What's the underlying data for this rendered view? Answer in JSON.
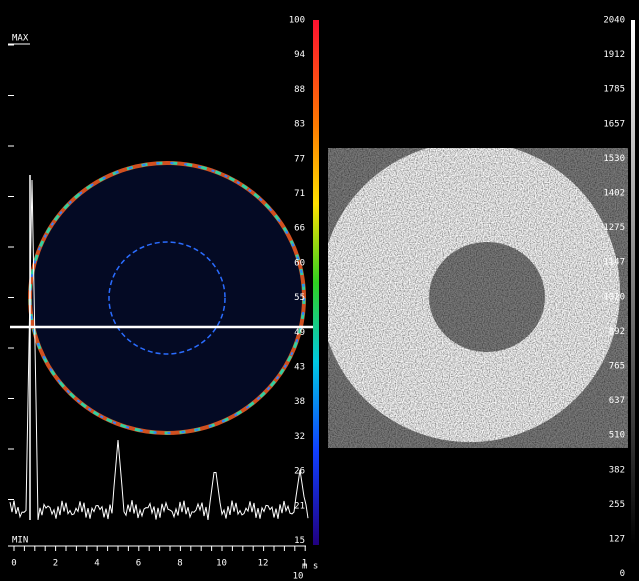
{
  "left_panel": {
    "max_label": "MAX",
    "min_label": "MIN",
    "x_axis_labels": [
      "0",
      "2",
      "4",
      "6",
      "8",
      "10",
      "12",
      "1"
    ],
    "x_axis_unit": "m s",
    "x_axis_exponent": "10"
  },
  "color_scale": {
    "labels": [
      "100",
      "94",
      "88",
      "83",
      "77",
      "71",
      "66",
      "60",
      "55",
      "49",
      "43",
      "38",
      "32",
      "26",
      "21",
      "15"
    ]
  },
  "gray_scale": {
    "labels": [
      "2040",
      "1912",
      "1785",
      "1657",
      "1530",
      "1402",
      "1275",
      "1147",
      "1020",
      "892",
      "765",
      "637",
      "510",
      "382",
      "255",
      "127",
      "0"
    ]
  }
}
